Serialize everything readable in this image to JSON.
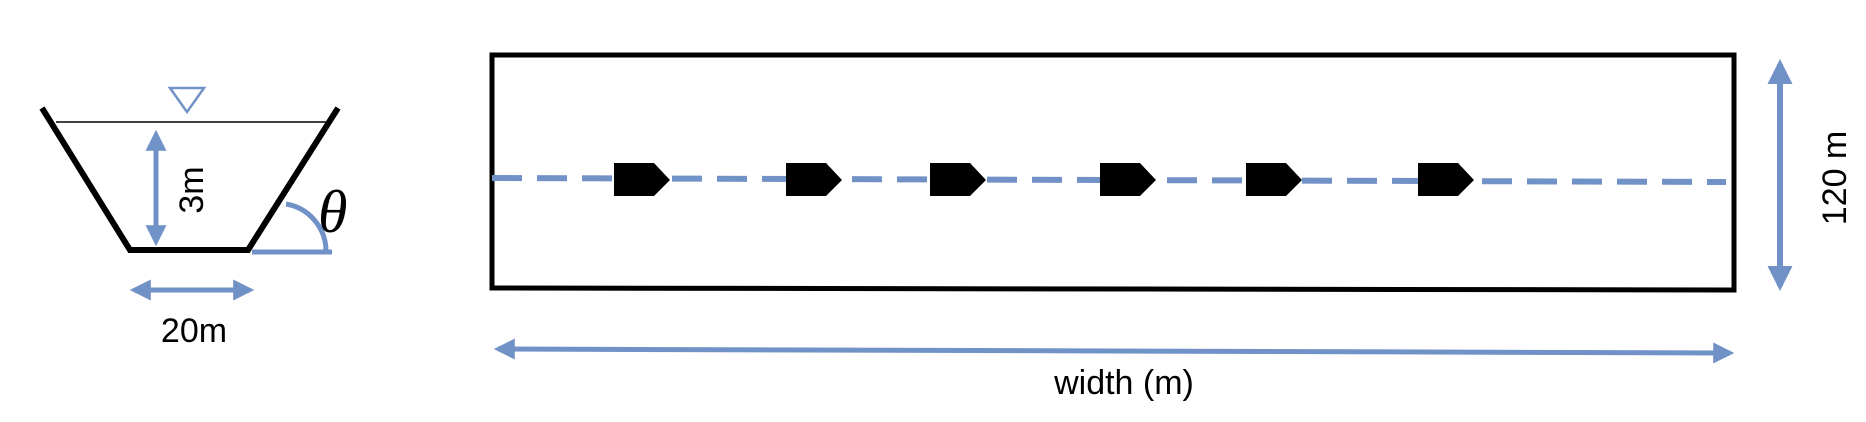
{
  "cross_section": {
    "depth_label": "3m",
    "bottom_width_label": "20m",
    "angle_label": "θ"
  },
  "plan_view": {
    "height_label": "120 m",
    "width_label": "width (m)",
    "marker_count": 6
  },
  "colors": {
    "ink": "#000000",
    "accent": "#7192c7"
  },
  "icons": {
    "water_surface": "inverted-triangle-icon",
    "marker": "pentagon-marker-icon"
  }
}
